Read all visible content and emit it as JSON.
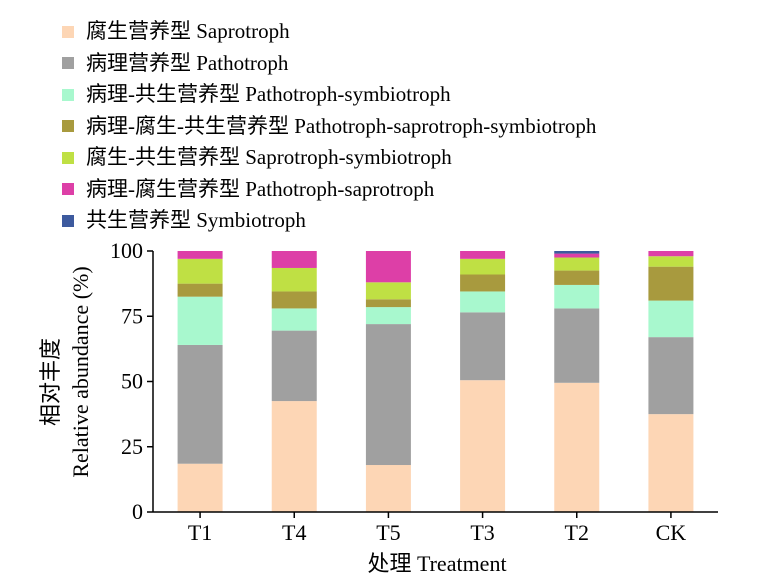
{
  "chart_data": {
    "type": "bar",
    "stacked": true,
    "categories": [
      "T1",
      "T4",
      "T5",
      "T3",
      "T2",
      "CK"
    ],
    "xlabel": "处理 Treatment",
    "ylabel_cn": "相对丰度",
    "ylabel_en": "Relative abundance (%)",
    "ylim": [
      0,
      100
    ],
    "yticks": [
      0,
      25,
      50,
      75,
      100
    ],
    "grid": false,
    "legend_position": "top-left",
    "series": [
      {
        "name": "腐生营养型 Saprotroph",
        "color": "#FDD6B5",
        "values": [
          18.5,
          42.5,
          18,
          50.5,
          49.5,
          37.5
        ]
      },
      {
        "name": "病理营养型 Pathotroph",
        "color": "#A0A0A0",
        "values": [
          45.5,
          27,
          54,
          26,
          28.5,
          29.5
        ]
      },
      {
        "name": "病理-共生营养型 Pathotroph-symbiotroph",
        "color": "#A8F8CE",
        "values": [
          18.5,
          8.5,
          6.5,
          8,
          9,
          14
        ]
      },
      {
        "name": "病理-腐生-共生营养型 Pathotroph-saprotroph-symbiotroph",
        "color": "#A89A3E",
        "values": [
          5,
          6.5,
          3,
          6.5,
          5.5,
          13
        ]
      },
      {
        "name": "腐生-共生营养型 Saprotroph-symbiotroph",
        "color": "#BFE044",
        "values": [
          9.5,
          9,
          6.5,
          6,
          5,
          4
        ]
      },
      {
        "name": "病理-腐生营养型 Pathotroph-saprotroph",
        "color": "#DD3FA7",
        "values": [
          3,
          6.5,
          12,
          3,
          1.5,
          2
        ]
      },
      {
        "name": "共生营养型 Symbiotroph",
        "color": "#3D5A9E",
        "values": [
          0,
          0,
          0,
          0,
          1,
          0
        ]
      }
    ]
  }
}
